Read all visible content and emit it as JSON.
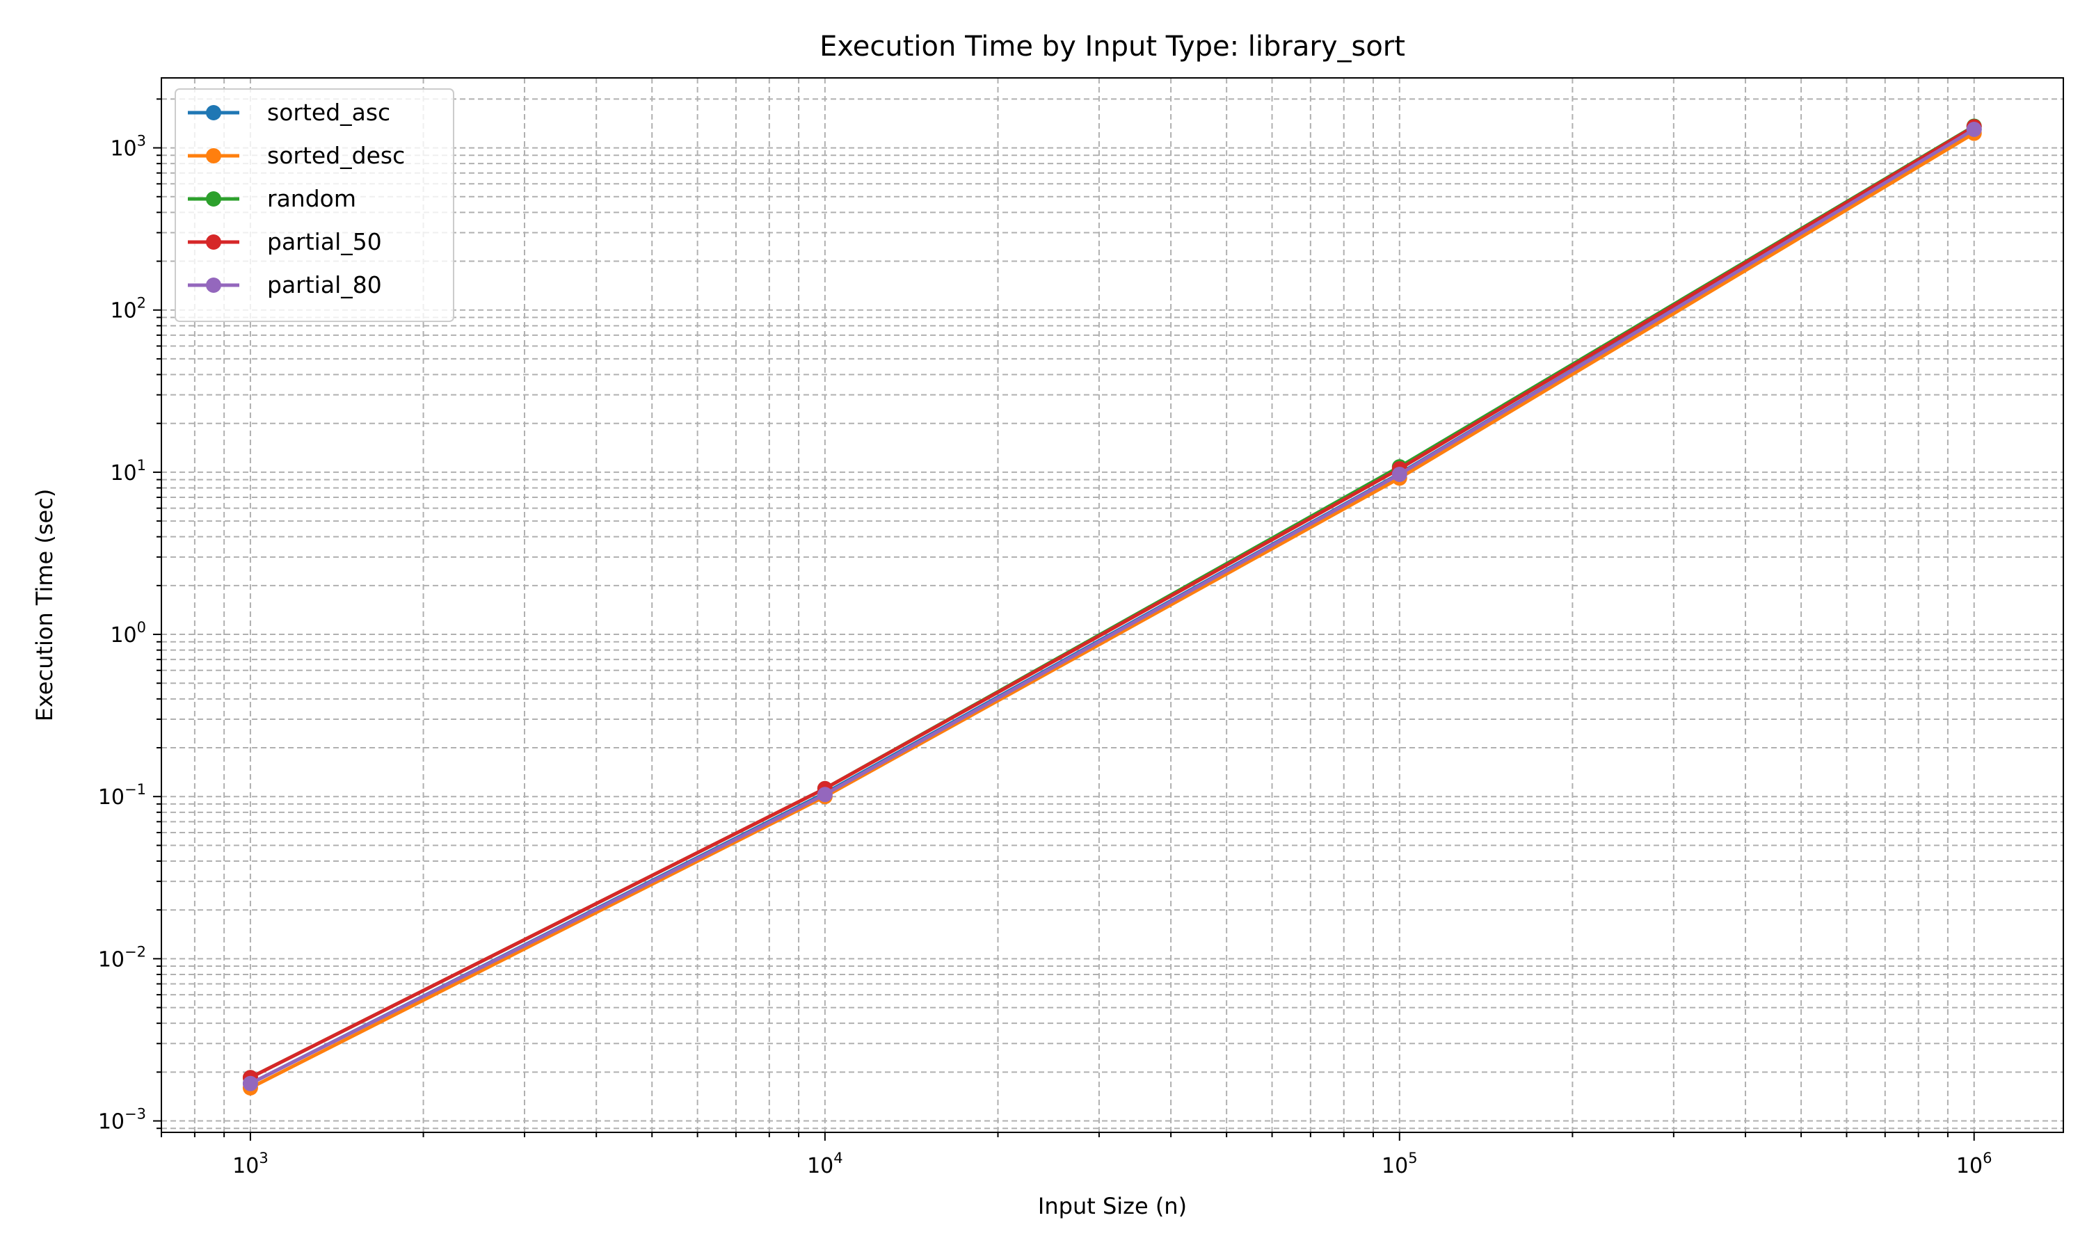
{
  "chart_data": {
    "type": "line",
    "title": "Execution Time by Input Type: library_sort",
    "xlabel": "Input Size (n)",
    "ylabel": "Execution Time (sec)",
    "xscale": "log",
    "yscale": "log",
    "xlim": [
      700,
      1430000
    ],
    "ylim": [
      0.00085,
      2700
    ],
    "grid": true,
    "grid_style": "dashed, major and minor",
    "legend_position": "top-left",
    "x_ticks": [
      {
        "value": 1000,
        "base": "10",
        "exp": "3"
      },
      {
        "value": 10000,
        "base": "10",
        "exp": "4"
      },
      {
        "value": 100000,
        "base": "10",
        "exp": "5"
      },
      {
        "value": 1000000,
        "base": "10",
        "exp": "6"
      }
    ],
    "y_ticks": [
      {
        "value": 0.001,
        "base": "10",
        "exp": "−3"
      },
      {
        "value": 0.01,
        "base": "10",
        "exp": "−2"
      },
      {
        "value": 0.1,
        "base": "10",
        "exp": "−1"
      },
      {
        "value": 1,
        "base": "10",
        "exp": "0"
      },
      {
        "value": 10,
        "base": "10",
        "exp": "1"
      },
      {
        "value": 100,
        "base": "10",
        "exp": "2"
      },
      {
        "value": 1000,
        "base": "10",
        "exp": "3"
      }
    ],
    "x": [
      1000,
      10000,
      100000,
      1000000
    ],
    "series": [
      {
        "name": "sorted_asc",
        "color": "#1f77b4",
        "values": [
          0.0017,
          0.105,
          9.8,
          1300
        ]
      },
      {
        "name": "sorted_desc",
        "color": "#ff7f0e",
        "values": [
          0.0016,
          0.1,
          9.2,
          1230
        ]
      },
      {
        "name": "random",
        "color": "#2ca02c",
        "values": [
          0.00185,
          0.112,
          10.8,
          1360
        ]
      },
      {
        "name": "partial_50",
        "color": "#d62728",
        "values": [
          0.00185,
          0.112,
          10.5,
          1350
        ]
      },
      {
        "name": "partial_80",
        "color": "#9467bd",
        "values": [
          0.0017,
          0.103,
          9.7,
          1300
        ]
      }
    ]
  }
}
